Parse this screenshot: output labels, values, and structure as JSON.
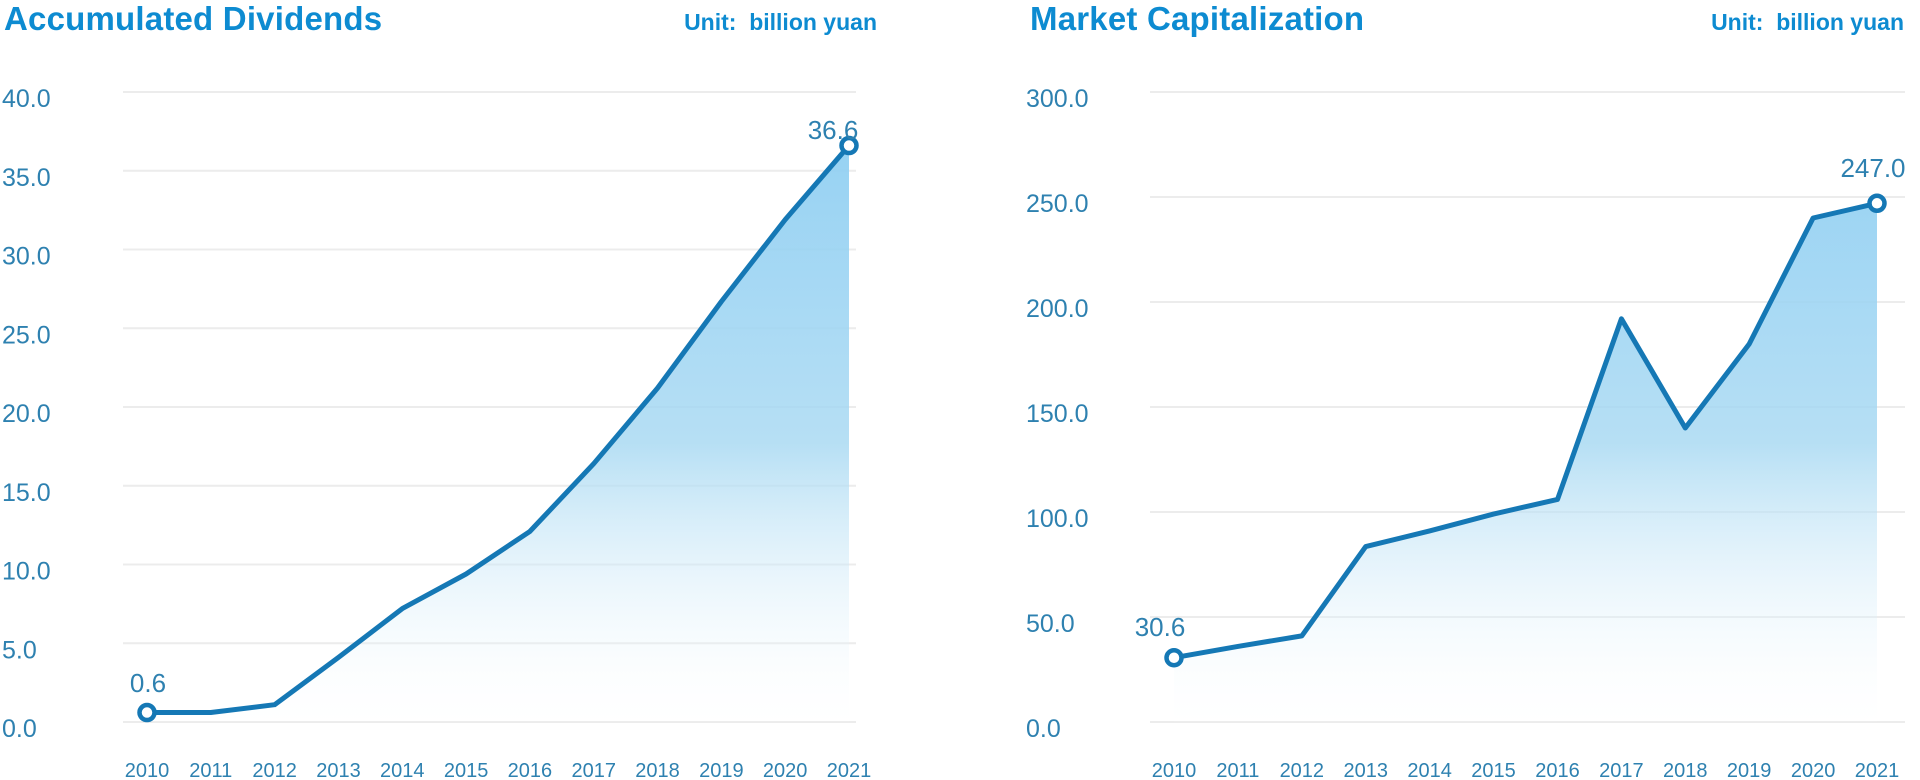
{
  "page": {
    "background": "#ffffff"
  },
  "colors": {
    "title": "#0d8bd1",
    "axis_label": "#2e81b0",
    "point_label": "#2e81b0",
    "line": "#1578b5",
    "gridline": "#ececec",
    "marker_fill": "#ffffff",
    "area_gradient_top": "#8bcdf2",
    "area_gradient_mid": "#a6d8f2",
    "area_gradient_bottom": "#ffffff"
  },
  "chart_data": [
    {
      "type": "area",
      "title": "Accumulated Dividends",
      "unit_label": "Unit:  billion yuan",
      "categories": [
        "2010",
        "2011",
        "2012",
        "2013",
        "2014",
        "2015",
        "2016",
        "2017",
        "2018",
        "2019",
        "2020",
        "2021"
      ],
      "values": [
        0.6,
        0.6,
        1.1,
        4.1,
        7.2,
        9.4,
        12.1,
        16.4,
        21.2,
        26.7,
        31.9,
        36.6
      ],
      "ylim": [
        0,
        40
      ],
      "ytick_step": 5,
      "ytick_labels": [
        "40.0",
        "35.0",
        "30.0",
        "25.0",
        "20.0",
        "15.0",
        "10.0",
        "5.0",
        "0.0"
      ],
      "grid": true,
      "legend": false,
      "point_labels": {
        "first": "0.6",
        "last": "36.6"
      }
    },
    {
      "type": "area",
      "title": "Market Capitalization",
      "unit_label": "Unit:  billion yuan",
      "categories": [
        "2010",
        "2011",
        "2012",
        "2013",
        "2014",
        "2015",
        "2016",
        "2017",
        "2018",
        "2019",
        "2020",
        "2021"
      ],
      "values": [
        30.6,
        36.0,
        41.0,
        83.5,
        91.0,
        99.0,
        106.0,
        192.0,
        140.0,
        180.0,
        240.0,
        247.0
      ],
      "ylim": [
        0,
        300
      ],
      "ytick_step": 50,
      "ytick_labels": [
        "300.0",
        "250.0",
        "200.0",
        "150.0",
        "100.0",
        "50.0",
        "0.0"
      ],
      "grid": true,
      "legend": false,
      "point_labels": {
        "first": "30.6",
        "last": "247.0"
      }
    }
  ]
}
